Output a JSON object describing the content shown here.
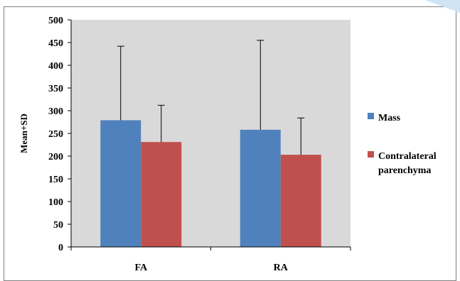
{
  "chart_data": {
    "type": "bar",
    "title": "",
    "xlabel": "",
    "ylabel": "Mean+SD",
    "categories": [
      "FA",
      "RA"
    ],
    "ylim": [
      0,
      500
    ],
    "yticks": [
      0,
      50,
      100,
      150,
      200,
      250,
      300,
      350,
      400,
      450,
      500
    ],
    "grid": false,
    "legend_position": "right",
    "error_bars": "upper",
    "series": [
      {
        "name": "Mass",
        "color": "#4f81bd",
        "values": [
          279,
          258
        ],
        "sd_upper": [
          442,
          455
        ]
      },
      {
        "name": "Contralateral parenchyma",
        "color": "#c0504d",
        "values": [
          231,
          203
        ],
        "sd_upper": [
          312,
          284
        ]
      }
    ],
    "legend": [
      {
        "lines": [
          "Mass"
        ]
      },
      {
        "lines": [
          "Contralateral",
          "parenchyma"
        ]
      }
    ],
    "plot_background": "#d9d9d9"
  }
}
